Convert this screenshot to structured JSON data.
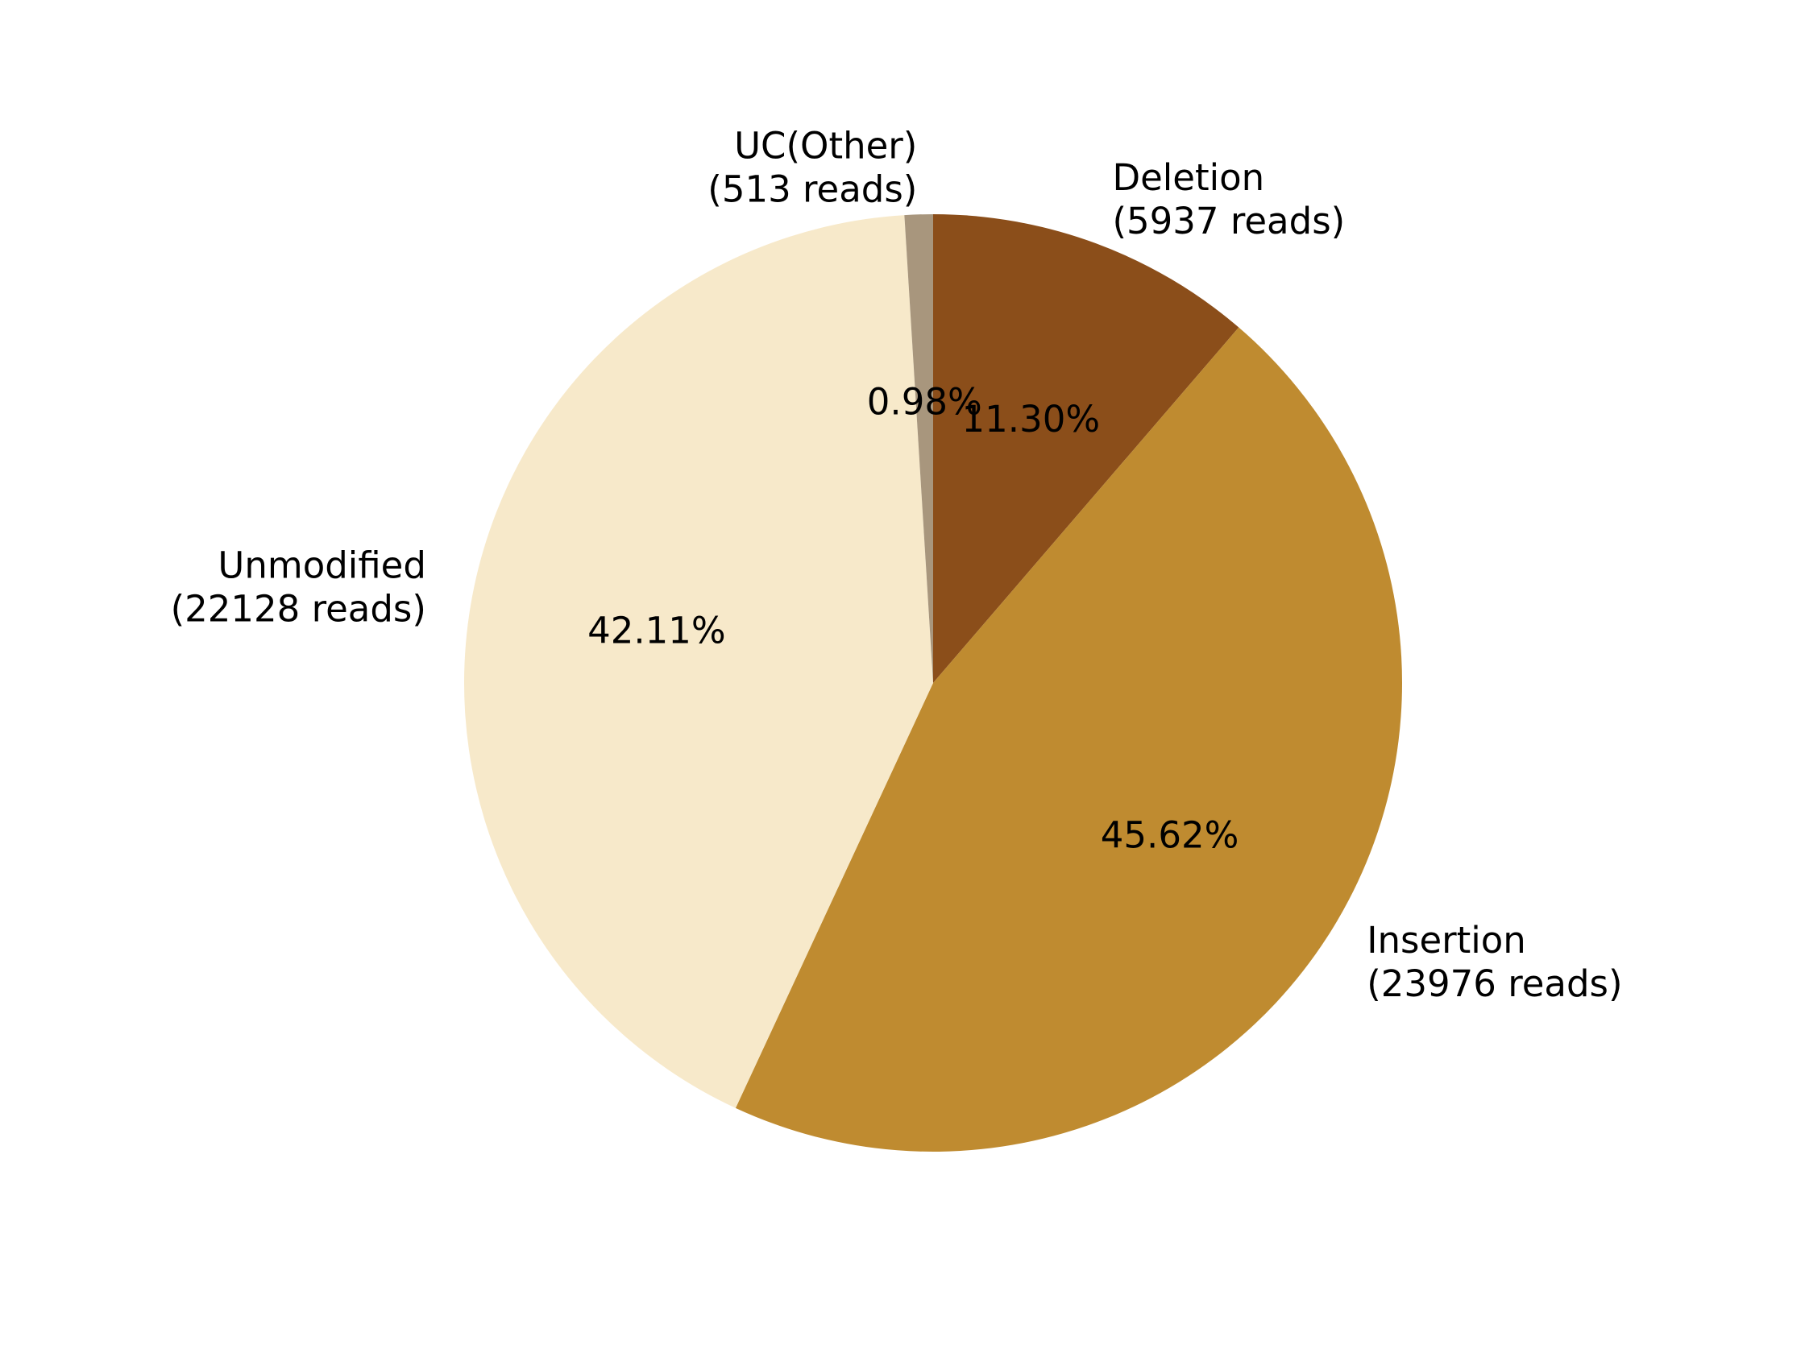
{
  "chart_data": {
    "type": "pie",
    "title": "",
    "start_angle_deg": 90,
    "direction": "clockwise",
    "slices": [
      {
        "name": "Deletion",
        "count_label": "(5937 reads)",
        "value": 5937,
        "pct_label": "11.30%",
        "color": "#8B4E1A"
      },
      {
        "name": "Insertion",
        "count_label": "(23976 reads)",
        "value": 23976,
        "pct_label": "45.62%",
        "color": "#BF8B30"
      },
      {
        "name": "Unmodified",
        "count_label": "(22128 reads)",
        "value": 22128,
        "pct_label": "42.11%",
        "color": "#F7E9CA"
      },
      {
        "name": "UC(Other)",
        "count_label": "(513 reads)",
        "value": 513,
        "pct_label": "0.98%",
        "color": "#A8967D"
      }
    ]
  }
}
